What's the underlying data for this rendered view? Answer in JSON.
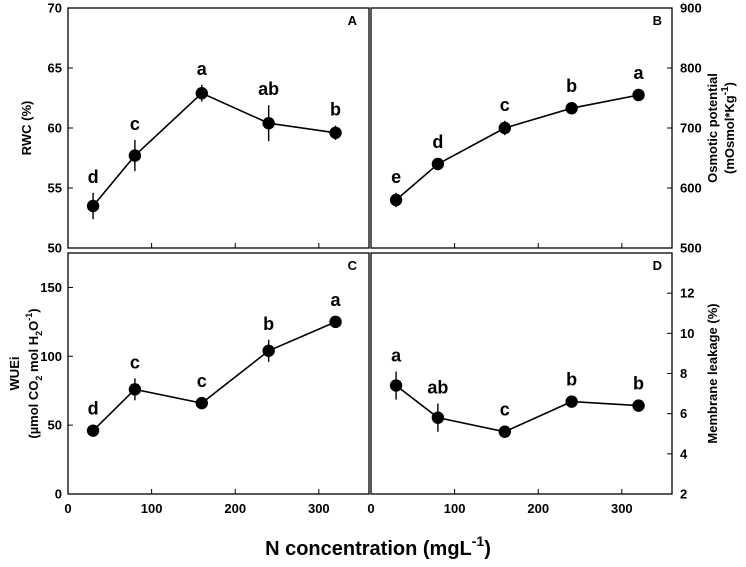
{
  "figure": {
    "xlabel_prefix": "N concentration (mgL",
    "xlabel_sup": "-1",
    "xlabel_suffix": ")"
  },
  "chart_data": [
    {
      "panel": "A",
      "type": "line",
      "x": [
        30,
        80,
        160,
        240,
        320
      ],
      "y": [
        53.5,
        57.7,
        62.9,
        60.4,
        59.6
      ],
      "err": [
        1.1,
        1.3,
        0.7,
        1.5,
        0.6
      ],
      "letters": [
        "d",
        "c",
        "a",
        "ab",
        "b"
      ],
      "xlim": [
        0,
        360
      ],
      "xticks": [
        0,
        100,
        200,
        300
      ],
      "ylim": [
        50,
        70
      ],
      "yticks": [
        50,
        55,
        60,
        65,
        70
      ],
      "yaxis_side": "left",
      "ylabel": "RWC (%)"
    },
    {
      "panel": "B",
      "type": "line",
      "x": [
        30,
        80,
        160,
        240,
        320
      ],
      "y": [
        580,
        640,
        700,
        733,
        755
      ],
      "err": [
        12,
        10,
        12,
        8,
        6
      ],
      "letters": [
        "e",
        "d",
        "c",
        "b",
        "a"
      ],
      "xlim": [
        0,
        360
      ],
      "xticks": [
        0,
        100,
        200,
        300
      ],
      "ylim": [
        500,
        900
      ],
      "yticks": [
        500,
        600,
        700,
        800,
        900
      ],
      "yaxis_side": "right",
      "ylabel": "Osmotic potential",
      "ylabel_line2": "(mOsmol*Kg-1)"
    },
    {
      "panel": "C",
      "type": "line",
      "x": [
        30,
        80,
        160,
        240,
        320
      ],
      "y": [
        46,
        76,
        66,
        104,
        125
      ],
      "err": [
        3,
        8,
        4,
        8,
        3
      ],
      "letters": [
        "d",
        "c",
        "c",
        "b",
        "a"
      ],
      "xlim": [
        0,
        360
      ],
      "xticks": [
        0,
        100,
        200,
        300
      ],
      "ylim": [
        0,
        175
      ],
      "yticks": [
        0,
        50,
        100,
        150
      ],
      "yaxis_side": "left",
      "ylabel": "WUEi",
      "ylabel_line2": "(µmol CO2 mol H2O-1)"
    },
    {
      "panel": "D",
      "type": "line",
      "x": [
        30,
        80,
        160,
        240,
        320
      ],
      "y": [
        7.4,
        5.8,
        5.1,
        6.6,
        6.4
      ],
      "err": [
        0.7,
        0.7,
        0.2,
        0.2,
        0.2
      ],
      "letters": [
        "a",
        "ab",
        "c",
        "b",
        "b"
      ],
      "xlim": [
        0,
        360
      ],
      "xticks": [
        0,
        100,
        200,
        300
      ],
      "ylim": [
        2,
        14
      ],
      "yticks": [
        2,
        4,
        6,
        8,
        10,
        12
      ],
      "yaxis_side": "right",
      "ylabel": "Membrane leakage (%)"
    }
  ]
}
